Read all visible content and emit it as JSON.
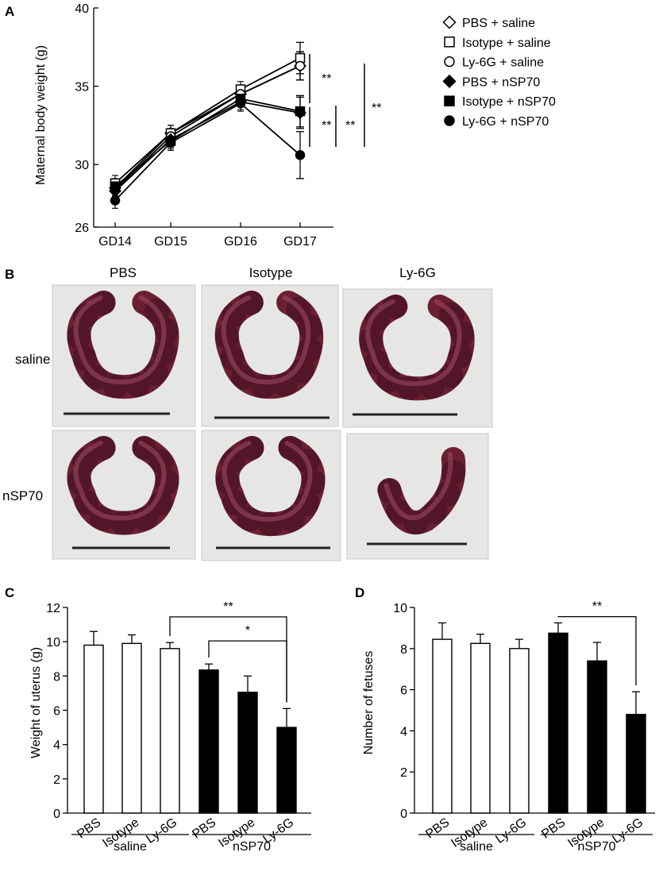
{
  "colors": {
    "white_bar": "#ffffff",
    "black_bar": "#000000",
    "photo_bg": "#e6e7e4",
    "tissue": "#6b1f33",
    "scale_bar": "#222222"
  },
  "panel_letters": {
    "a": "A",
    "b": "B",
    "c": "C",
    "d": "D"
  },
  "chart_data": [
    {
      "panel": "A",
      "type": "line",
      "ylabel": "Maternal body weight (g)",
      "categories": [
        "GD14",
        "GD15",
        "GD16",
        "GD17"
      ],
      "ylim": [
        26,
        40
      ],
      "yticks": [
        "26",
        "30",
        "35",
        "40"
      ],
      "ytick_values": [
        26,
        30,
        35,
        40
      ],
      "series": [
        {
          "name": "PBS + saline",
          "marker": "diamond-open",
          "values": [
            28.5,
            32.0,
            34.5,
            36.3
          ]
        },
        {
          "name": "Isotype + saline",
          "marker": "square-open",
          "values": [
            28.8,
            32.0,
            34.8,
            36.8
          ]
        },
        {
          "name": "Ly-6G + saline",
          "marker": "circle-open",
          "values": [
            28.4,
            31.8,
            34.5,
            36.3
          ]
        },
        {
          "name": "PBS + nSP70",
          "marker": "diamond-filled",
          "values": [
            28.3,
            31.6,
            34.0,
            33.3
          ]
        },
        {
          "name": "Isotype + nSP70",
          "marker": "square-filled",
          "values": [
            28.6,
            31.5,
            34.2,
            33.4
          ]
        },
        {
          "name": "Ly-6G + nSP70",
          "marker": "circle-filled",
          "values": [
            27.7,
            31.4,
            33.9,
            30.6
          ]
        }
      ],
      "errors_last": [
        0.9,
        1.0,
        0.9,
        1.0,
        1.0,
        1.5
      ],
      "significance": [
        "**",
        "**",
        "**",
        "**"
      ]
    },
    {
      "panel": "C",
      "type": "bar",
      "ylabel": "Weight of uterus (g)",
      "categories": [
        "PBS",
        "Isotype",
        "Ly-6G",
        "PBS",
        "Isotype",
        "Ly-6G"
      ],
      "groups": [
        "saline",
        "nSP70"
      ],
      "values": [
        9.8,
        9.9,
        9.6,
        8.35,
        7.05,
        5.0
      ],
      "errors": [
        0.8,
        0.5,
        0.35,
        0.35,
        0.95,
        1.1
      ],
      "fill": [
        "white",
        "white",
        "white",
        "black",
        "black",
        "black"
      ],
      "ylim": [
        0,
        12
      ],
      "yticks": [
        "0",
        "2",
        "4",
        "6",
        "8",
        "10",
        "12"
      ],
      "ytick_values": [
        0,
        2,
        4,
        6,
        8,
        10,
        12
      ],
      "significance": [
        {
          "from": 2,
          "to": 5,
          "label": "**",
          "y": 11.45
        },
        {
          "from": 3,
          "to": 5,
          "label": "*",
          "y": 10.05
        }
      ]
    },
    {
      "panel": "D",
      "type": "bar",
      "ylabel": "Number of fetuses",
      "categories": [
        "PBS",
        "Isotype",
        "Ly-6G",
        "PBS",
        "Isotype",
        "Ly-6G"
      ],
      "groups": [
        "saline",
        "nSP70"
      ],
      "values": [
        8.45,
        8.25,
        8.0,
        8.75,
        7.4,
        4.8
      ],
      "errors": [
        0.8,
        0.45,
        0.45,
        0.5,
        0.9,
        1.1
      ],
      "fill": [
        "white",
        "white",
        "white",
        "black",
        "black",
        "black"
      ],
      "ylim": [
        0,
        10
      ],
      "yticks": [
        "0",
        "2",
        "4",
        "6",
        "8",
        "10"
      ],
      "ytick_values": [
        0,
        2,
        4,
        6,
        8,
        10
      ],
      "significance": [
        {
          "from": 3,
          "to": 5,
          "label": "**",
          "y": 9.55
        }
      ]
    }
  ],
  "panel_b": {
    "columns": [
      "PBS",
      "Isotype",
      "Ly-6G"
    ],
    "rows": [
      "saline",
      "nSP70"
    ]
  }
}
